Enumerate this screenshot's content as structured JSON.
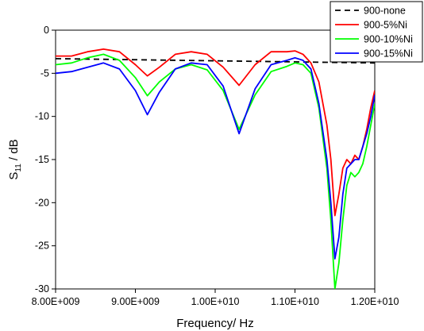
{
  "chart_data": {
    "type": "line",
    "xlabel": "Frequency/ Hz",
    "ylabel_main": "S",
    "ylabel_sub": "11",
    "ylabel_tail": " / dB",
    "xlim": [
      8000000000.0,
      12000000000.0
    ],
    "ylim": [
      -30,
      0
    ],
    "x_ticks": [
      {
        "value": 8000000000.0,
        "label": "8.00E+009"
      },
      {
        "value": 9000000000.0,
        "label": "9.00E+009"
      },
      {
        "value": 10000000000.0,
        "label": "1.00E+010"
      },
      {
        "value": 11000000000.0,
        "label": "1.10E+010"
      },
      {
        "value": 12000000000.0,
        "label": "1.20E+010"
      }
    ],
    "y_ticks": [
      {
        "value": 0,
        "label": "0"
      },
      {
        "value": -5,
        "label": "-5"
      },
      {
        "value": -10,
        "label": "-10"
      },
      {
        "value": -15,
        "label": "-15"
      },
      {
        "value": -20,
        "label": "-20"
      },
      {
        "value": -25,
        "label": "-25"
      },
      {
        "value": -30,
        "label": "-30"
      }
    ],
    "grid": false,
    "legend_position": "top-right",
    "series": [
      {
        "name": "900-none",
        "color": "#000000",
        "style": "dashed",
        "x": [
          8000000000.0,
          12000000000.0
        ],
        "y": [
          -3.3,
          -3.8
        ]
      },
      {
        "name": "900-5%Ni",
        "color": "#ff0000",
        "style": "solid",
        "x": [
          8000000000.0,
          8200000000.0,
          8400000000.0,
          8600000000.0,
          8800000000.0,
          9000000000.0,
          9150000000.0,
          9300000000.0,
          9500000000.0,
          9700000000.0,
          9900000000.0,
          10100000000.0,
          10300000000.0,
          10500000000.0,
          10700000000.0,
          10900000000.0,
          11000000000.0,
          11100000000.0,
          11200000000.0,
          11300000000.0,
          11400000000.0,
          11450000000.0,
          11500000000.0,
          11550000000.0,
          11600000000.0,
          11650000000.0,
          11700000000.0,
          11750000000.0,
          11800000000.0,
          11850000000.0,
          11900000000.0,
          11950000000.0,
          12000000000.0
        ],
        "y": [
          -3.0,
          -3.0,
          -2.5,
          -2.2,
          -2.5,
          -4.0,
          -5.3,
          -4.3,
          -2.8,
          -2.5,
          -2.8,
          -4.3,
          -6.4,
          -4.0,
          -2.5,
          -2.5,
          -2.4,
          -2.8,
          -3.8,
          -6.0,
          -11.0,
          -15.0,
          -21.5,
          -19.0,
          -16.0,
          -15.0,
          -15.5,
          -14.5,
          -15.0,
          -13.5,
          -11.5,
          -9.0,
          -7.0
        ]
      },
      {
        "name": "900-10%Ni",
        "color": "#00ff00",
        "style": "solid",
        "x": [
          8000000000.0,
          8200000000.0,
          8400000000.0,
          8600000000.0,
          8800000000.0,
          9000000000.0,
          9150000000.0,
          9300000000.0,
          9500000000.0,
          9700000000.0,
          9900000000.0,
          10100000000.0,
          10300000000.0,
          10500000000.0,
          10700000000.0,
          10900000000.0,
          11000000000.0,
          11100000000.0,
          11200000000.0,
          11300000000.0,
          11400000000.0,
          11450000000.0,
          11500000000.0,
          11550000000.0,
          11600000000.0,
          11650000000.0,
          11700000000.0,
          11750000000.0,
          11800000000.0,
          11850000000.0,
          11900000000.0,
          11950000000.0,
          12000000000.0
        ],
        "y": [
          -4.0,
          -3.8,
          -3.2,
          -2.8,
          -3.5,
          -5.5,
          -7.6,
          -6.0,
          -4.5,
          -4.0,
          -4.6,
          -7.0,
          -11.5,
          -7.5,
          -4.8,
          -4.2,
          -3.8,
          -4.0,
          -5.0,
          -9.0,
          -16.0,
          -22.0,
          -30.0,
          -27.0,
          -22.0,
          -18.0,
          -16.5,
          -17.0,
          -16.5,
          -15.5,
          -13.5,
          -11.0,
          -8.5
        ]
      },
      {
        "name": "900-15%Ni",
        "color": "#0000ff",
        "style": "solid",
        "x": [
          8000000000.0,
          8200000000.0,
          8400000000.0,
          8600000000.0,
          8800000000.0,
          9000000000.0,
          9150000000.0,
          9300000000.0,
          9500000000.0,
          9700000000.0,
          9900000000.0,
          10100000000.0,
          10300000000.0,
          10500000000.0,
          10700000000.0,
          10900000000.0,
          11000000000.0,
          11100000000.0,
          11200000000.0,
          11300000000.0,
          11400000000.0,
          11450000000.0,
          11500000000.0,
          11550000000.0,
          11600000000.0,
          11650000000.0,
          11700000000.0,
          11750000000.0,
          11800000000.0,
          11850000000.0,
          11900000000.0,
          11950000000.0,
          12000000000.0
        ],
        "y": [
          -5.0,
          -4.8,
          -4.3,
          -3.8,
          -4.5,
          -7.0,
          -9.8,
          -7.2,
          -4.5,
          -3.8,
          -4.0,
          -6.5,
          -12.0,
          -6.8,
          -4.0,
          -3.5,
          -3.2,
          -3.5,
          -4.5,
          -8.5,
          -15.0,
          -20.0,
          -26.5,
          -24.0,
          -19.0,
          -16.0,
          -15.5,
          -15.0,
          -15.0,
          -13.5,
          -12.0,
          -10.0,
          -7.5
        ]
      }
    ]
  }
}
